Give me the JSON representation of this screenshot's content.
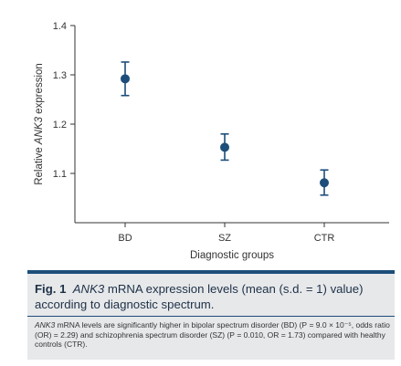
{
  "chart_data": {
    "type": "scatter",
    "categories": [
      "BD",
      "SZ",
      "CTR"
    ],
    "values": [
      1.292,
      1.153,
      1.081
    ],
    "error_low": [
      1.258,
      1.127,
      1.056
    ],
    "error_high": [
      1.326,
      1.18,
      1.107
    ],
    "yticks": [
      "1.1",
      "1.2",
      "1.3",
      "1.4"
    ],
    "ylim": [
      1.0,
      1.4
    ],
    "xlabel": "Diagnostic groups",
    "ylabel_pre": "Relative ",
    "ylabel_gene": "ANK3",
    "ylabel_post": " expression",
    "marker_color": "#1d4e7a",
    "grid": false
  },
  "caption": {
    "fig_num": "Fig. 1",
    "gene": "ANK3",
    "title_rest": " mRNA expression levels (mean (s.d. = 1) value) according to diagnostic spectrum.",
    "desc_gene": "ANK3",
    "desc_rest": " mRNA levels are significantly higher in bipolar spectrum disorder (BD) (P = 9.0 × 10⁻⁵, odds ratio (OR) = 2.29) and schizophrenia spectrum disorder (SZ) (P = 0.010, OR = 1.73) compared with healthy controls (CTR).",
    "accent": "#1d4e7a",
    "box_bg": "#e7e8ea"
  }
}
